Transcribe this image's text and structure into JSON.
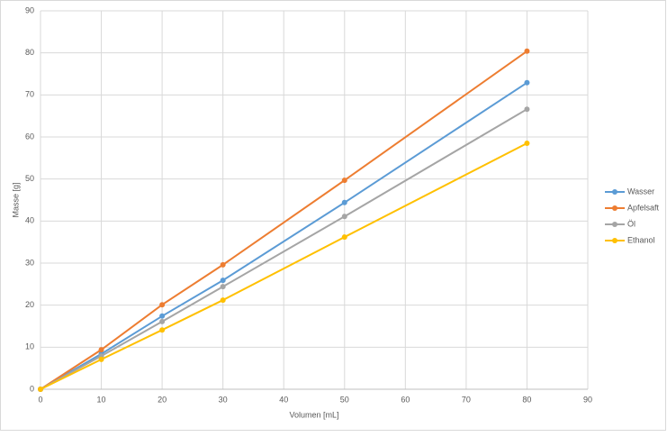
{
  "chart_data": {
    "type": "line",
    "x_label": "Volumen [mL]",
    "y_label": "Masse [g]",
    "x": [
      0,
      10,
      20,
      30,
      50,
      80
    ],
    "series": [
      {
        "name": "Wasser",
        "color": "#5b9bd5",
        "values": [
          0,
          8.4,
          17.4,
          25.9,
          44.4,
          72.9
        ]
      },
      {
        "name": "Apfelsaft",
        "color": "#ed7d31",
        "values": [
          0,
          9.4,
          20.1,
          29.6,
          49.7,
          80.4
        ]
      },
      {
        "name": "Öl",
        "color": "#a5a5a5",
        "values": [
          0,
          7.9,
          16.1,
          24.4,
          41.1,
          66.6
        ]
      },
      {
        "name": "Ethanol",
        "color": "#ffc000",
        "values": [
          0,
          7.1,
          14.1,
          21.2,
          36.2,
          58.5
        ]
      }
    ],
    "xlim": [
      0,
      90
    ],
    "xticks": [
      0,
      10,
      20,
      30,
      40,
      50,
      60,
      70,
      80,
      90
    ],
    "ylim": [
      0,
      90
    ],
    "yticks": [
      0,
      10,
      20,
      30,
      40,
      50,
      60,
      70,
      80,
      90
    ],
    "grid": true,
    "legend": "right"
  }
}
